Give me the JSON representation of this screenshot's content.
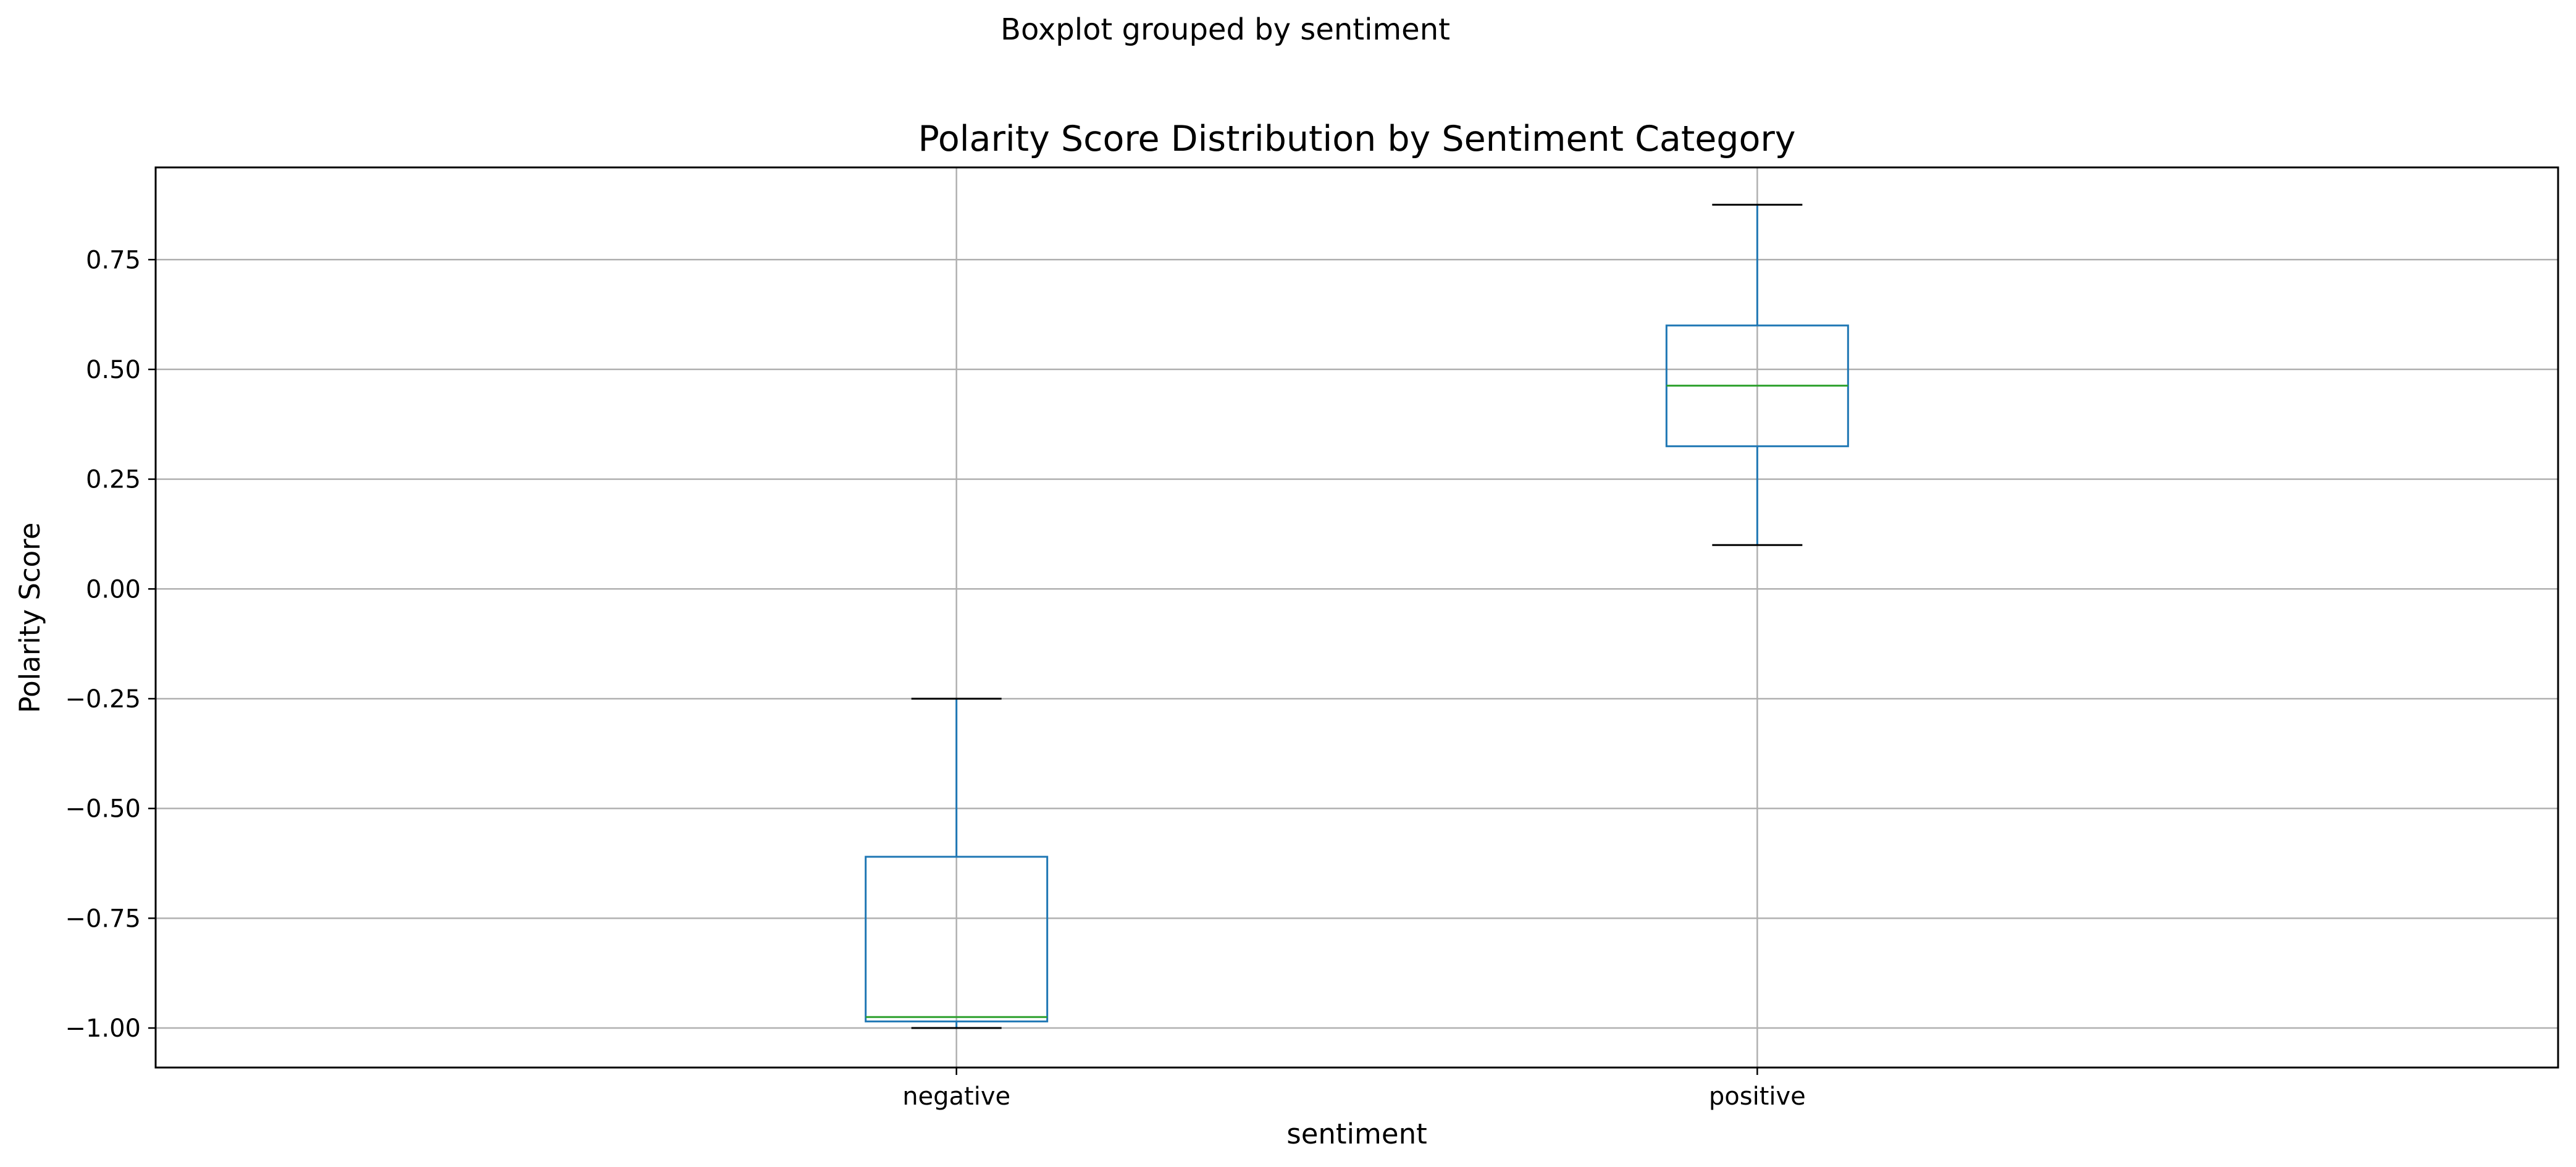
{
  "chart_data": {
    "type": "box",
    "suptitle": "Boxplot grouped by sentiment",
    "title": "Polarity Score Distribution by Sentiment Category",
    "xlabel": "sentiment",
    "ylabel": "Polarity Score",
    "ylim": [
      -1.09,
      0.96
    ],
    "yticks": [
      {
        "value": 0.75,
        "label": "0.75"
      },
      {
        "value": 0.5,
        "label": "0.50"
      },
      {
        "value": 0.25,
        "label": "0.25"
      },
      {
        "value": 0.0,
        "label": "0.00"
      },
      {
        "value": -0.25,
        "label": "−0.25"
      },
      {
        "value": -0.5,
        "label": "−0.50"
      },
      {
        "value": -0.75,
        "label": "−0.75"
      },
      {
        "value": -1.0,
        "label": "−1.00"
      }
    ],
    "grid": true,
    "categories": [
      "negative",
      "positive"
    ],
    "boxes": [
      {
        "category": "negative",
        "whisker_low": -1.0,
        "q1": -0.985,
        "median": -0.975,
        "q3": -0.61,
        "whisker_high": -0.25
      },
      {
        "category": "positive",
        "whisker_low": 0.1,
        "q1": 0.325,
        "median": 0.463,
        "q3": 0.6,
        "whisker_high": 0.875
      }
    ],
    "colors": {
      "box": "#1f77b4",
      "median": "#2ca02c",
      "cap": "#000000",
      "grid": "#b0b0b0",
      "axes": "#000000"
    }
  }
}
